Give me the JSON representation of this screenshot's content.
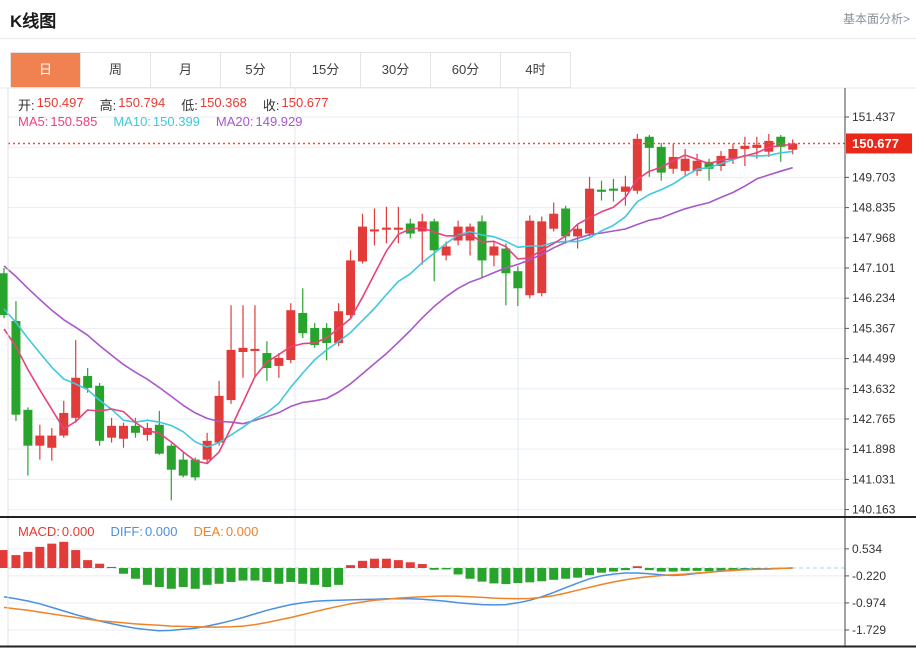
{
  "header": {
    "title": "K线图",
    "link_label": "基本面分析>"
  },
  "tabs": {
    "items": [
      "日",
      "周",
      "月",
      "5分",
      "15分",
      "30分",
      "60分",
      "4时"
    ],
    "active_index": 0
  },
  "info": {
    "ohlc": [
      {
        "label": "开:",
        "value": "150.497"
      },
      {
        "label": "高:",
        "value": "150.794"
      },
      {
        "label": "低:",
        "value": "150.368"
      },
      {
        "label": "收:",
        "value": "150.677"
      }
    ],
    "ma": [
      {
        "label": "MA5:",
        "value": "150.585",
        "color_key": "ma5"
      },
      {
        "label": "MA10:",
        "value": "150.399",
        "color_key": "ma10"
      },
      {
        "label": "MA20:",
        "value": "149.929",
        "color_key": "ma20"
      }
    ],
    "macd": [
      {
        "label": "MACD:",
        "value": "0.000",
        "color_key": "macd"
      },
      {
        "label": "DIFF:",
        "value": "0.000",
        "color_key": "diff"
      },
      {
        "label": "DEA:",
        "value": "0.000",
        "color_key": "dea"
      }
    ]
  },
  "colors": {
    "up": "#e13c3a",
    "down": "#28a42c",
    "ohlc_value": "#e8392f",
    "macd": "#e8392f",
    "diff": "#4a90e2",
    "dea": "#ef8426",
    "ma5": "#e8437a",
    "ma10": "#3fc8de",
    "ma20": "#a958c8",
    "dotted_line": "#ff4433",
    "price_tag_bg": "#e8291a",
    "price_tag_text": "#ffffff",
    "tab_active_bg": "#ef8250",
    "axis_text": "#333333",
    "grid": "#e9eef5",
    "vgrid": "#dde9f2",
    "zero_dash": "#9fd8ec",
    "border_dark": "#222222",
    "border_light": "#e0e0e0"
  },
  "chart_data": {
    "type": "candlestick",
    "panels": [
      "price+ma",
      "macd"
    ],
    "legend_position": "top-left-overlay",
    "grid": true,
    "price_axis": {
      "grid_top": 151.437,
      "grid_step": 0.867,
      "hidden_grid_value": 150.57,
      "labels": [
        "151.437",
        "149.703",
        "148.835",
        "147.968",
        "147.101",
        "146.234",
        "145.367",
        "144.499",
        "143.632",
        "142.765",
        "141.898",
        "141.031",
        "140.163"
      ]
    },
    "current_price": 150.677,
    "current_price_tag": "150.677",
    "ma_last_values": {
      "ma5": 150.585,
      "ma10": 150.399,
      "ma20": 149.929
    },
    "candles_ohlc": [
      [
        146.95,
        147.1,
        145.66,
        145.75
      ],
      [
        145.58,
        146.15,
        142.71,
        142.89
      ],
      [
        143.03,
        143.1,
        141.14,
        142.0
      ],
      [
        142.0,
        142.6,
        141.6,
        142.29
      ],
      [
        141.94,
        142.51,
        141.57,
        142.29
      ],
      [
        142.29,
        143.29,
        142.23,
        142.94
      ],
      [
        142.8,
        145.03,
        142.66,
        143.95
      ],
      [
        144.0,
        144.23,
        143.52,
        143.66
      ],
      [
        143.72,
        143.8,
        142.0,
        142.14
      ],
      [
        142.23,
        142.8,
        142.09,
        142.57
      ],
      [
        142.2,
        142.66,
        141.94,
        142.57
      ],
      [
        142.57,
        142.8,
        142.23,
        142.37
      ],
      [
        142.31,
        142.66,
        142.14,
        142.51
      ],
      [
        142.6,
        143.0,
        141.74,
        141.77
      ],
      [
        142.0,
        142.06,
        140.43,
        141.31
      ],
      [
        141.6,
        141.8,
        141.09,
        141.14
      ],
      [
        141.6,
        141.66,
        141.0,
        141.09
      ],
      [
        141.6,
        142.37,
        141.51,
        142.14
      ],
      [
        142.09,
        143.86,
        142.0,
        143.43
      ],
      [
        143.31,
        146.03,
        143.2,
        144.75
      ],
      [
        144.69,
        146.03,
        143.95,
        144.81
      ],
      [
        144.72,
        146.03,
        143.95,
        144.78
      ],
      [
        144.66,
        145.0,
        143.86,
        144.23
      ],
      [
        144.29,
        144.66,
        143.95,
        144.52
      ],
      [
        144.46,
        146.09,
        144.37,
        145.89
      ],
      [
        145.81,
        146.52,
        145.09,
        145.23
      ],
      [
        145.38,
        145.52,
        144.81,
        144.89
      ],
      [
        145.38,
        145.52,
        144.45,
        144.95
      ],
      [
        144.95,
        146.09,
        144.86,
        145.86
      ],
      [
        145.75,
        147.61,
        145.66,
        147.32
      ],
      [
        147.29,
        148.66,
        147.23,
        148.29
      ],
      [
        148.15,
        148.81,
        147.75,
        148.21
      ],
      [
        148.2,
        148.86,
        147.81,
        148.26
      ],
      [
        148.2,
        148.86,
        147.81,
        148.26
      ],
      [
        148.38,
        148.52,
        147.95,
        148.09
      ],
      [
        148.15,
        148.66,
        147.2,
        148.44
      ],
      [
        148.44,
        148.52,
        146.72,
        147.61
      ],
      [
        147.46,
        147.86,
        147.32,
        147.72
      ],
      [
        147.89,
        148.46,
        147.75,
        148.29
      ],
      [
        147.89,
        148.38,
        147.46,
        148.29
      ],
      [
        148.44,
        148.61,
        146.81,
        147.32
      ],
      [
        147.46,
        147.86,
        147.15,
        147.72
      ],
      [
        147.66,
        147.81,
        146.03,
        146.95
      ],
      [
        147.01,
        147.15,
        146.01,
        146.52
      ],
      [
        146.32,
        148.61,
        146.23,
        148.46
      ],
      [
        146.38,
        148.58,
        146.29,
        148.44
      ],
      [
        148.23,
        148.98,
        148.15,
        148.66
      ],
      [
        148.81,
        148.89,
        147.8,
        148.01
      ],
      [
        148.01,
        148.38,
        147.66,
        148.23
      ],
      [
        148.09,
        149.72,
        148.01,
        149.38
      ],
      [
        149.35,
        149.61,
        149.04,
        149.29
      ],
      [
        149.38,
        149.66,
        149.01,
        149.32
      ],
      [
        149.29,
        149.75,
        148.89,
        149.44
      ],
      [
        149.32,
        150.95,
        149.23,
        150.81
      ],
      [
        150.87,
        150.92,
        149.72,
        150.55
      ],
      [
        150.58,
        150.69,
        149.61,
        149.84
      ],
      [
        149.95,
        150.67,
        149.81,
        150.29
      ],
      [
        149.89,
        150.52,
        149.72,
        150.24
      ],
      [
        149.89,
        150.38,
        149.75,
        150.18
      ],
      [
        150.15,
        150.24,
        149.61,
        149.95
      ],
      [
        150.03,
        150.46,
        149.89,
        150.32
      ],
      [
        150.24,
        150.67,
        150.09,
        150.52
      ],
      [
        150.52,
        150.87,
        150.03,
        150.61
      ],
      [
        150.55,
        150.87,
        150.24,
        150.64
      ],
      [
        150.44,
        150.95,
        150.29,
        150.75
      ],
      [
        150.87,
        150.92,
        150.15,
        150.58
      ],
      [
        150.497,
        150.794,
        150.368,
        150.677
      ]
    ],
    "macd_axis": {
      "labels": [
        "0.534",
        "-0.220",
        "-0.974",
        "-1.729"
      ],
      "values": [
        0.534,
        -0.22,
        -0.974,
        -1.729
      ]
    },
    "macd_histogram": [
      0.5,
      0.36,
      0.45,
      0.59,
      0.68,
      0.73,
      0.5,
      0.22,
      0.12,
      0.03,
      -0.16,
      -0.3,
      -0.47,
      -0.53,
      -0.58,
      -0.53,
      -0.58,
      -0.47,
      -0.44,
      -0.39,
      -0.35,
      -0.35,
      -0.39,
      -0.44,
      -0.39,
      -0.44,
      -0.47,
      -0.53,
      -0.47,
      0.08,
      0.2,
      0.26,
      0.26,
      0.22,
      0.16,
      0.11,
      -0.05,
      -0.04,
      -0.18,
      -0.3,
      -0.38,
      -0.43,
      -0.45,
      -0.42,
      -0.4,
      -0.37,
      -0.33,
      -0.3,
      -0.27,
      -0.2,
      -0.13,
      -0.1,
      -0.06,
      0.05,
      -0.06,
      -0.1,
      -0.1,
      -0.08,
      -0.08,
      -0.09,
      -0.07,
      -0.05,
      -0.05,
      -0.04,
      -0.02,
      -0.01,
      0.0
    ],
    "diff_line": [
      -0.8,
      -0.86,
      -0.92,
      -1.0,
      -1.1,
      -1.2,
      -1.3,
      -1.39,
      -1.48,
      -1.55,
      -1.62,
      -1.68,
      -1.72,
      -1.75,
      -1.74,
      -1.71,
      -1.68,
      -1.62,
      -1.55,
      -1.47,
      -1.38,
      -1.28,
      -1.18,
      -1.1,
      -1.02,
      -0.97,
      -0.93,
      -0.91,
      -0.9,
      -0.89,
      -0.88,
      -0.87,
      -0.86,
      -0.86,
      -0.86,
      -0.87,
      -0.9,
      -0.93,
      -0.97,
      -1.0,
      -1.02,
      -1.03,
      -1.02,
      -0.97,
      -0.9,
      -0.8,
      -0.68,
      -0.55,
      -0.42,
      -0.3,
      -0.22,
      -0.17,
      -0.14,
      -0.14,
      -0.16,
      -0.19,
      -0.21,
      -0.19,
      -0.15,
      -0.12,
      -0.08,
      -0.05,
      -0.04,
      -0.03,
      -0.02,
      -0.01,
      0.0
    ],
    "dea_line": [
      -1.1,
      -1.14,
      -1.18,
      -1.23,
      -1.28,
      -1.33,
      -1.38,
      -1.43,
      -1.47,
      -1.5,
      -1.53,
      -1.56,
      -1.58,
      -1.6,
      -1.62,
      -1.63,
      -1.64,
      -1.65,
      -1.65,
      -1.64,
      -1.62,
      -1.58,
      -1.52,
      -1.45,
      -1.38,
      -1.3,
      -1.22,
      -1.14,
      -1.07,
      -1.0,
      -0.95,
      -0.9,
      -0.87,
      -0.84,
      -0.82,
      -0.8,
      -0.79,
      -0.78,
      -0.79,
      -0.8,
      -0.82,
      -0.84,
      -0.85,
      -0.86,
      -0.85,
      -0.82,
      -0.77,
      -0.7,
      -0.62,
      -0.54,
      -0.46,
      -0.39,
      -0.33,
      -0.28,
      -0.24,
      -0.21,
      -0.19,
      -0.17,
      -0.14,
      -0.12,
      -0.09,
      -0.07,
      -0.05,
      -0.04,
      -0.03,
      -0.01,
      0.0
    ]
  }
}
